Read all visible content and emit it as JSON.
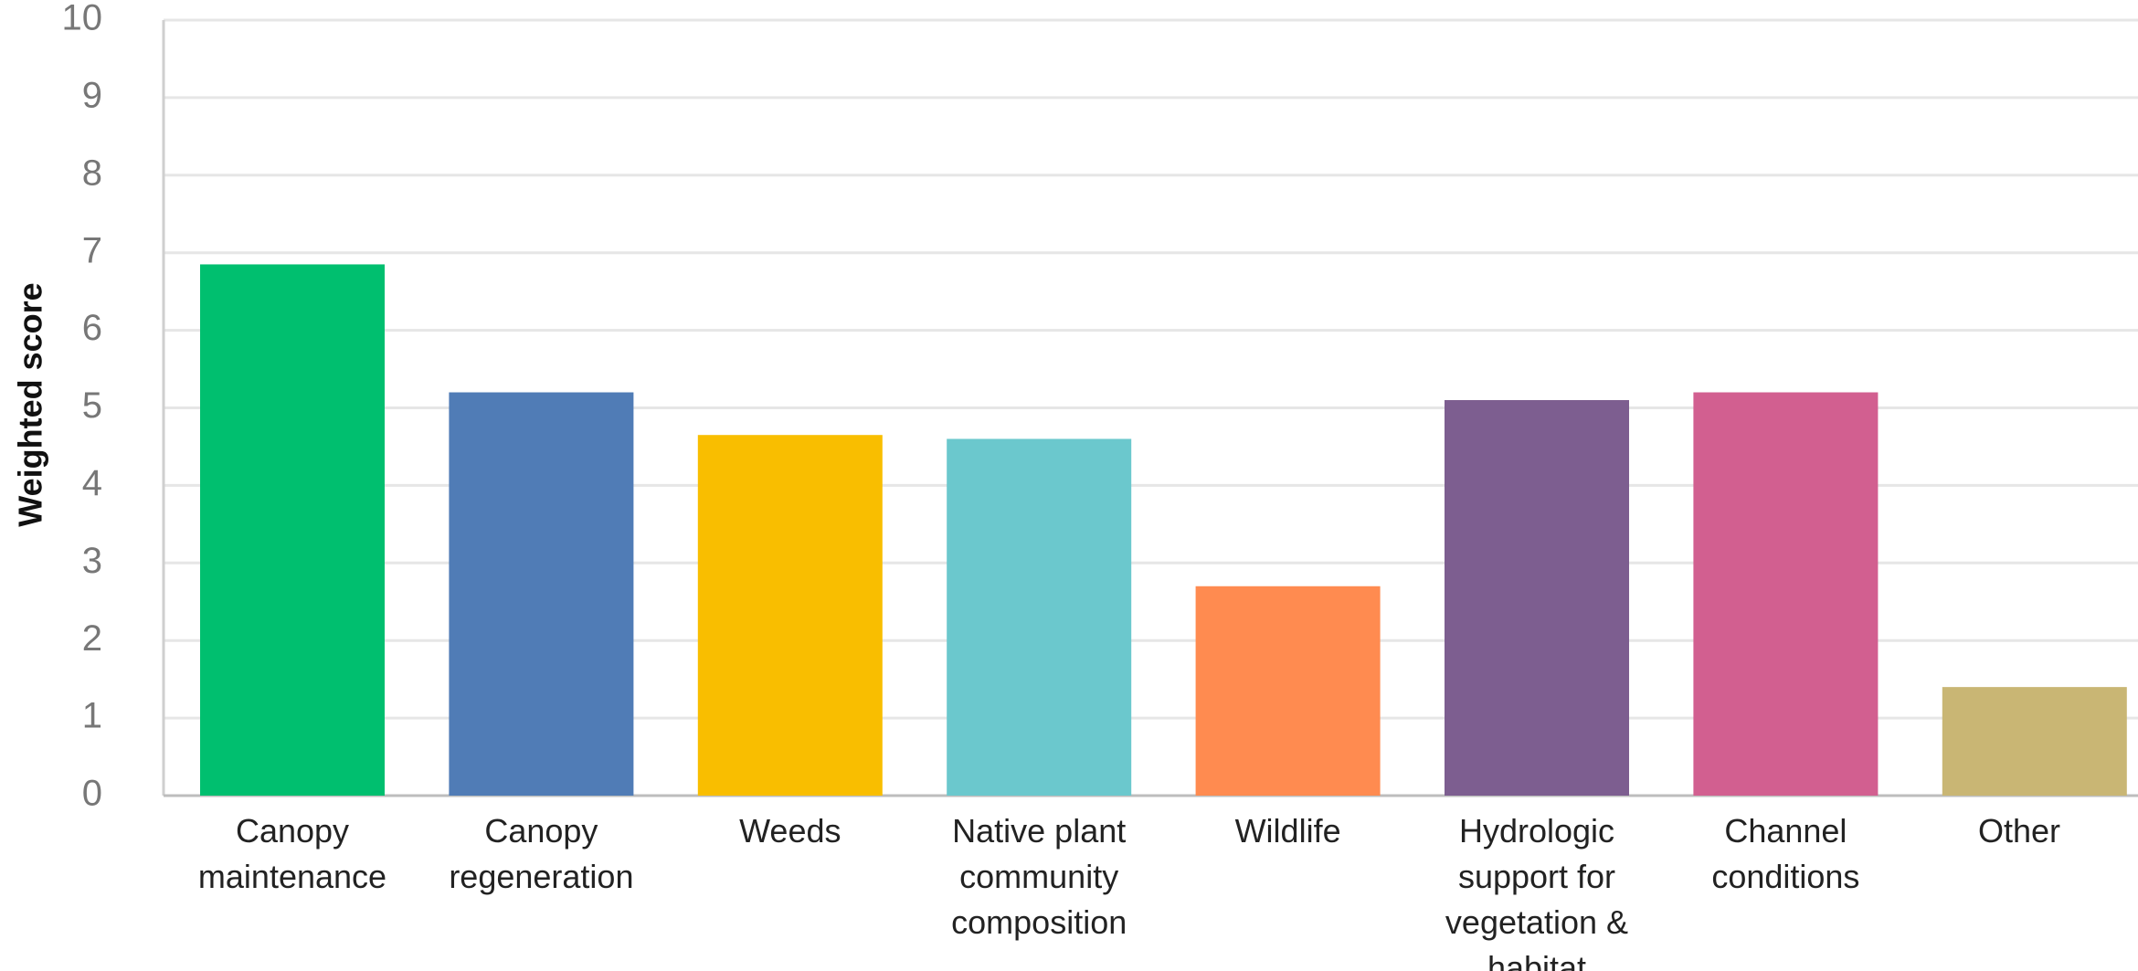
{
  "chart_data": {
    "type": "bar",
    "y_label": "Weighted score",
    "categories": [
      "Canopy maintenance",
      "Canopy regeneration",
      "Weeds",
      "Native plant community composition",
      "Wildlife",
      "Hydrologic support for vegetation & habitat",
      "Channel conditions",
      "Other"
    ],
    "values": [
      6.85,
      5.2,
      4.65,
      4.6,
      2.7,
      5.1,
      5.2,
      1.4
    ],
    "colors": [
      "#00bf6f",
      "#507cb6",
      "#f9be00",
      "#6bc8cd",
      "#ff8b50",
      "#7d5e90",
      "#d25f90",
      "#c9b674"
    ],
    "ylim": [
      0,
      10
    ],
    "yticks": [
      0,
      1,
      2,
      3,
      4,
      5,
      6,
      7,
      8,
      9,
      10
    ],
    "grid": true
  }
}
